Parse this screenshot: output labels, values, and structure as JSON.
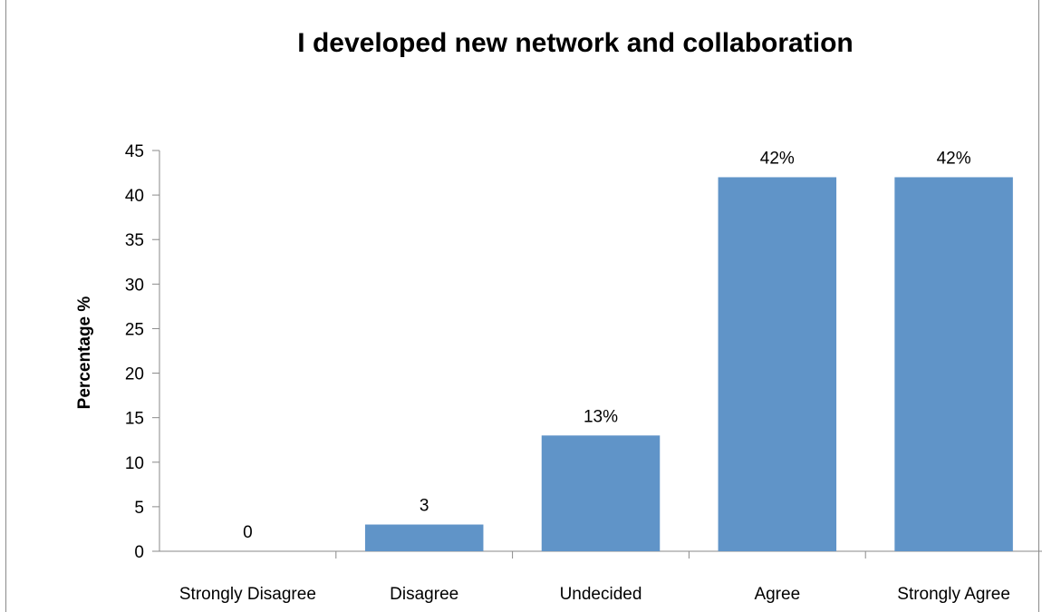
{
  "chart_data": {
    "type": "bar",
    "title": "I developed new network and collaboration",
    "xlabel": "",
    "ylabel": "Percentage %",
    "categories": [
      "Strongly Disagree",
      "Disagree",
      "Undecided",
      "Agree",
      "Strongly Agree"
    ],
    "values": [
      0,
      3,
      13,
      42,
      42
    ],
    "data_labels": [
      "0",
      "3",
      "13%",
      "42%",
      "42%"
    ],
    "ylim": [
      0,
      45
    ],
    "yticks": [
      "0",
      "5",
      "10",
      "15",
      "20",
      "25",
      "30",
      "35",
      "40",
      "45"
    ],
    "grid": false,
    "legend": "none",
    "bar_color": "#6094c8",
    "axis_color": "#8a8a8a"
  }
}
